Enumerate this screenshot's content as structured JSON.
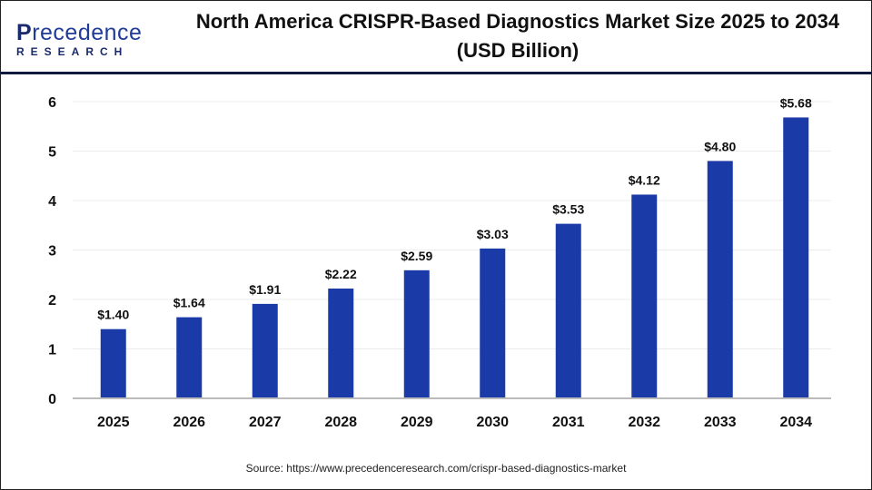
{
  "logo": {
    "line1_a": "P",
    "line1_b": "recedence",
    "line2": "RESEARCH"
  },
  "title": "North America CRISPR-Based Diagnostics Market Size 2025 to 2034 (USD Billion)",
  "source": "Source: https://www.precedenceresearch.com/crispr-based-diagnostics-market",
  "chart_data": {
    "type": "bar",
    "title": "North America CRISPR-Based Diagnostics Market Size 2025 to 2034 (USD Billion)",
    "categories": [
      "2025",
      "2026",
      "2027",
      "2028",
      "2029",
      "2030",
      "2031",
      "2032",
      "2033",
      "2034"
    ],
    "values": [
      1.4,
      1.64,
      1.91,
      2.22,
      2.59,
      3.03,
      3.53,
      4.12,
      4.8,
      5.68
    ],
    "data_labels": [
      "$1.40",
      "$1.64",
      "$1.91",
      "$2.22",
      "$2.59",
      "$3.03",
      "$3.53",
      "$4.12",
      "$4.80",
      "$5.68"
    ],
    "yticks": [
      0,
      1,
      2,
      3,
      4,
      5,
      6
    ],
    "ylim": [
      0,
      6
    ],
    "xlabel": "",
    "ylabel": "",
    "grid": true,
    "bar_color": "#1a3aa8"
  }
}
